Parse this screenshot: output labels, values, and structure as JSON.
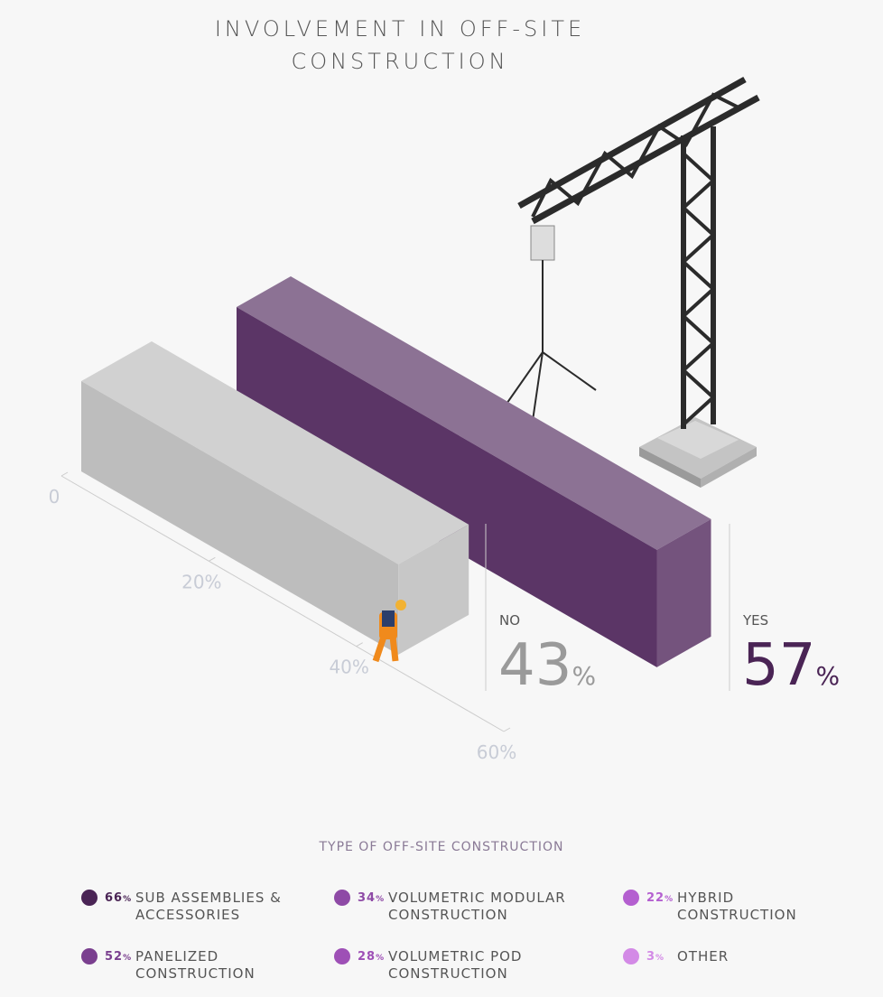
{
  "chart_data": [
    {
      "type": "bar",
      "title": "INVOLVEMENT IN OFF-SITE CONSTRUCTION",
      "categories": [
        "NO",
        "YES"
      ],
      "values": [
        43,
        57
      ],
      "value_labels": [
        "43%",
        "57%"
      ],
      "colors": [
        "#bdbdbd",
        "#5b3566"
      ],
      "label_colors": [
        "#9a9a9a",
        "#4a2455"
      ],
      "xlim": [
        0,
        60
      ],
      "xticks": [
        0,
        {
          "value": 20,
          "label": "20%"
        },
        {
          "value": 40,
          "label": "40%"
        },
        {
          "value": 60,
          "label": "60%"
        }
      ]
    },
    {
      "type": "dots",
      "title": "TYPE OF OFF-SITE CONSTRUCTION",
      "categories": [
        "SUB ASSEMBLIES & ACCESSORIES",
        "PANELIZED CONSTRUCTION",
        "VOLUMETRIC MODULAR CONSTRUCTION",
        "VOLUMETRIC POD CONSTRUCTION",
        "HYBRID CONSTRUCTION",
        "OTHER"
      ],
      "values": [
        66,
        52,
        34,
        28,
        22,
        3
      ],
      "value_labels": [
        "66%",
        "52%",
        "34%",
        "28%",
        "22%",
        "3%"
      ],
      "colors": [
        "#4a2455",
        "#7a3f8f",
        "#8e4aa6",
        "#9e50b6",
        "#b45fd0",
        "#d38ae6"
      ]
    }
  ]
}
